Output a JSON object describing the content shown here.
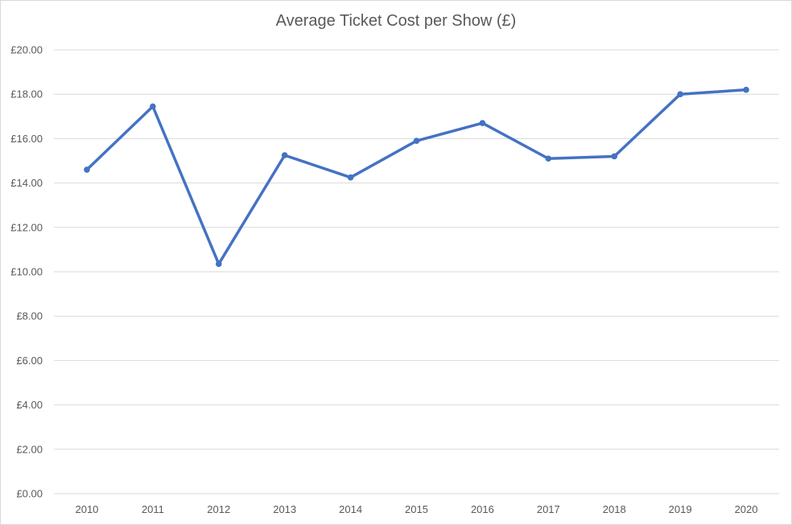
{
  "chart_data": {
    "type": "line",
    "title": "Average Ticket Cost per Show (£)",
    "xlabel": "",
    "ylabel": "",
    "categories": [
      "2010",
      "2011",
      "2012",
      "2013",
      "2014",
      "2015",
      "2016",
      "2017",
      "2018",
      "2019",
      "2020"
    ],
    "series": [
      {
        "values": [
          14.6,
          17.45,
          10.35,
          15.25,
          14.25,
          15.9,
          16.7,
          15.1,
          15.2,
          18.0,
          18.2
        ],
        "color": "#4472C4"
      }
    ],
    "ylim": [
      0,
      20
    ],
    "yticks": [
      "£0.00",
      "£2.00",
      "£4.00",
      "£6.00",
      "£8.00",
      "£10.00",
      "£12.00",
      "£14.00",
      "£16.00",
      "£18.00",
      "£20.00"
    ],
    "grid": true,
    "legend": "none"
  }
}
